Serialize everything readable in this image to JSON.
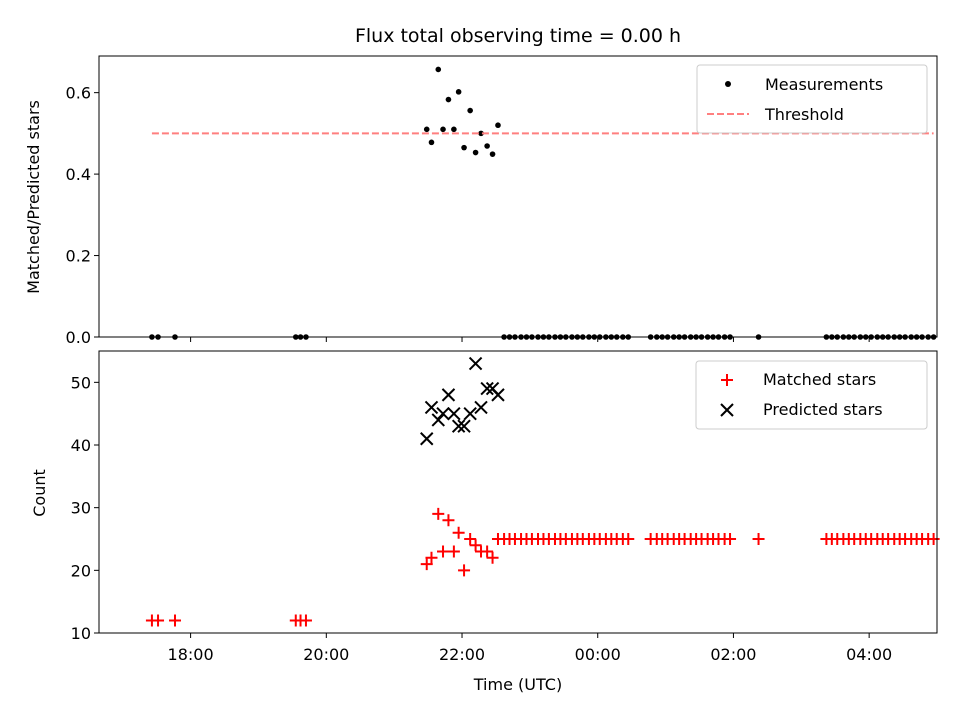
{
  "chart_data": [
    {
      "type": "scatter",
      "title": "Flux total observing time = 0.00 h",
      "xlabel": "",
      "ylabel": "Matched/Predicted stars",
      "ylim": [
        0,
        0.69
      ],
      "yticks": [
        0.0,
        0.2,
        0.4,
        0.6
      ],
      "ytick_labels": [
        "0.0",
        "0.2",
        "0.4",
        "0.6"
      ],
      "xlim_hours": [
        16.65,
        29.0
      ],
      "xticks_hours": [
        18,
        20,
        22,
        24,
        26,
        28
      ],
      "xtick_labels": [
        "",
        "",
        "",
        "",
        "",
        ""
      ],
      "grid": false,
      "legend_position": "upper-right",
      "series": [
        {
          "name": "Measurements",
          "marker": "dot",
          "color": "#000000",
          "x_hours": [
            17.43,
            17.52,
            17.77,
            19.55,
            19.62,
            19.7,
            21.48,
            21.55,
            21.65,
            21.72,
            21.8,
            21.88,
            21.95,
            22.03,
            22.12,
            22.2,
            22.28,
            22.37,
            22.45,
            22.53,
            22.62,
            22.7,
            22.78,
            22.87,
            22.95,
            23.03,
            23.12,
            23.2,
            23.28,
            23.37,
            23.45,
            23.53,
            23.62,
            23.7,
            23.78,
            23.87,
            23.95,
            24.03,
            24.12,
            24.2,
            24.28,
            24.37,
            24.45,
            24.78,
            24.87,
            24.95,
            25.03,
            25.12,
            25.2,
            25.28,
            25.37,
            25.45,
            25.53,
            25.62,
            25.7,
            25.78,
            25.87,
            25.95,
            26.37,
            27.37,
            27.45,
            27.53,
            27.62,
            27.7,
            27.78,
            27.87,
            27.95,
            28.03,
            28.12,
            28.2,
            28.28,
            28.37,
            28.45,
            28.53,
            28.62,
            28.7,
            28.78,
            28.87,
            28.95
          ],
          "y": [
            0.0,
            0.0,
            0.0,
            0.0,
            0.0,
            0.0,
            0.51,
            0.478,
            0.657,
            0.51,
            0.583,
            0.51,
            0.602,
            0.465,
            0.556,
            0.453,
            0.5,
            0.469,
            0.449,
            0.52,
            0.0,
            0.0,
            0.0,
            0.0,
            0.0,
            0.0,
            0.0,
            0.0,
            0.0,
            0.0,
            0.0,
            0.0,
            0.0,
            0.0,
            0.0,
            0.0,
            0.0,
            0.0,
            0.0,
            0.0,
            0.0,
            0.0,
            0.0,
            0.0,
            0.0,
            0.0,
            0.0,
            0.0,
            0.0,
            0.0,
            0.0,
            0.0,
            0.0,
            0.0,
            0.0,
            0.0,
            0.0,
            0.0,
            0.0,
            0.0,
            0.0,
            0.0,
            0.0,
            0.0,
            0.0,
            0.0,
            0.0,
            0.0,
            0.0,
            0.0,
            0.0,
            0.0,
            0.0,
            0.0,
            0.0,
            0.0,
            0.0,
            0.0,
            0.0
          ]
        },
        {
          "name": "Threshold",
          "marker": "dashed-line",
          "color": "#ff7f7f",
          "x_hours": [
            17.43,
            28.95
          ],
          "y": [
            0.5,
            0.5
          ]
        }
      ]
    },
    {
      "type": "scatter",
      "title": "",
      "xlabel": "Time (UTC)",
      "ylabel": "Count",
      "ylim": [
        10,
        55
      ],
      "yticks": [
        10,
        20,
        30,
        40,
        50
      ],
      "ytick_labels": [
        "10",
        "20",
        "30",
        "40",
        "50"
      ],
      "xlim_hours": [
        16.65,
        29.0
      ],
      "xticks_hours": [
        18,
        20,
        22,
        24,
        26,
        28
      ],
      "xtick_labels": [
        "18:00",
        "20:00",
        "22:00",
        "00:00",
        "02:00",
        "04:00"
      ],
      "grid": false,
      "legend_position": "upper-right",
      "series": [
        {
          "name": "Matched stars",
          "marker": "plus",
          "color": "#ff0000",
          "x_hours": [
            17.43,
            17.52,
            17.77,
            19.55,
            19.62,
            19.7,
            21.48,
            21.55,
            21.65,
            21.72,
            21.8,
            21.88,
            21.95,
            22.03,
            22.12,
            22.2,
            22.28,
            22.37,
            22.45,
            22.53,
            22.62,
            22.7,
            22.78,
            22.87,
            22.95,
            23.03,
            23.12,
            23.2,
            23.28,
            23.37,
            23.45,
            23.53,
            23.62,
            23.7,
            23.78,
            23.87,
            23.95,
            24.03,
            24.12,
            24.2,
            24.28,
            24.37,
            24.45,
            24.78,
            24.87,
            24.95,
            25.03,
            25.12,
            25.2,
            25.28,
            25.37,
            25.45,
            25.53,
            25.62,
            25.7,
            25.78,
            25.87,
            25.95,
            26.37,
            27.37,
            27.45,
            27.53,
            27.62,
            27.7,
            27.78,
            27.87,
            27.95,
            28.03,
            28.12,
            28.2,
            28.28,
            28.37,
            28.45,
            28.53,
            28.62,
            28.7,
            28.78,
            28.87,
            28.95
          ],
          "y": [
            12,
            12,
            12,
            12,
            12,
            12,
            21,
            22,
            29,
            23,
            28,
            23,
            26,
            20,
            25,
            24,
            23,
            23,
            22,
            25,
            25,
            25,
            25,
            25,
            25,
            25,
            25,
            25,
            25,
            25,
            25,
            25,
            25,
            25,
            25,
            25,
            25,
            25,
            25,
            25,
            25,
            25,
            25,
            25,
            25,
            25,
            25,
            25,
            25,
            25,
            25,
            25,
            25,
            25,
            25,
            25,
            25,
            25,
            25,
            25,
            25,
            25,
            25,
            25,
            25,
            25,
            25,
            25,
            25,
            25,
            25,
            25,
            25,
            25,
            25,
            25,
            25,
            25,
            25
          ]
        },
        {
          "name": "Predicted stars",
          "marker": "x",
          "color": "#000000",
          "x_hours": [
            21.48,
            21.55,
            21.65,
            21.72,
            21.8,
            21.88,
            21.95,
            22.03,
            22.12,
            22.2,
            22.28,
            22.37,
            22.45,
            22.53
          ],
          "y": [
            41,
            46,
            44,
            45,
            48,
            45,
            43,
            43,
            45,
            53,
            46,
            49,
            49,
            48
          ]
        }
      ]
    }
  ],
  "legends": {
    "top": [
      "Measurements",
      "Threshold"
    ],
    "bottom": [
      "Matched stars",
      "Predicted stars"
    ]
  },
  "colors": {
    "measurement": "#000000",
    "threshold": "#ff7f7f",
    "matched": "#ff0000",
    "predicted": "#000000"
  }
}
